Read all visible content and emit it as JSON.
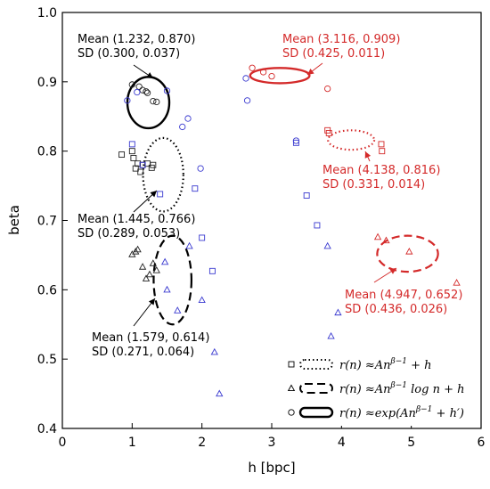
{
  "chart_data": {
    "type": "scatter",
    "title": "",
    "xlabel": "h [bpc]",
    "ylabel": "beta",
    "xlim": [
      0,
      6
    ],
    "ylim": [
      0.4,
      1.0
    ],
    "xticks": [
      0,
      1,
      2,
      3,
      4,
      5,
      6
    ],
    "yticks": [
      0.4,
      0.5,
      0.6,
      0.7,
      0.8,
      0.9,
      1.0
    ],
    "grid": false,
    "legend_position": "bottom-right",
    "legend": [
      {
        "marker": "square",
        "line": "dotted",
        "label": "r(n) ≈ An^(β−1) + h"
      },
      {
        "marker": "triangle",
        "line": "dashed",
        "label": "r(n) ≈ An^(β−1) log n + h"
      },
      {
        "marker": "circle",
        "line": "solid",
        "label": "r(n) ≈ exp(An^(β−1) + h′)"
      }
    ],
    "series": [
      {
        "group": "black",
        "color": "#222222",
        "marker": "circle",
        "points": [
          [
            1.0,
            0.896
          ],
          [
            1.1,
            0.893
          ],
          [
            1.15,
            0.888
          ],
          [
            1.2,
            0.886
          ],
          [
            1.22,
            0.884
          ],
          [
            1.3,
            0.872
          ],
          [
            1.35,
            0.871
          ]
        ]
      },
      {
        "group": "black",
        "color": "#222222",
        "marker": "square",
        "points": [
          [
            0.85,
            0.795
          ],
          [
            1.0,
            0.8
          ],
          [
            1.02,
            0.79
          ],
          [
            1.05,
            0.775
          ],
          [
            1.08,
            0.782
          ],
          [
            1.12,
            0.77
          ],
          [
            1.15,
            0.78
          ],
          [
            1.22,
            0.782
          ],
          [
            1.28,
            0.776
          ],
          [
            1.3,
            0.78
          ]
        ]
      },
      {
        "group": "black",
        "color": "#222222",
        "marker": "triangle",
        "points": [
          [
            1.0,
            0.651
          ],
          [
            1.05,
            0.655
          ],
          [
            1.08,
            0.658
          ],
          [
            1.15,
            0.633
          ],
          [
            1.2,
            0.616
          ],
          [
            1.25,
            0.622
          ],
          [
            1.3,
            0.638
          ],
          [
            1.35,
            0.628
          ]
        ]
      },
      {
        "group": "blue",
        "color": "#3a3ad0",
        "marker": "circle",
        "points": [
          [
            0.93,
            0.873
          ],
          [
            1.07,
            0.885
          ],
          [
            1.5,
            0.887
          ],
          [
            1.72,
            0.835
          ],
          [
            1.8,
            0.847
          ],
          [
            1.98,
            0.775
          ],
          [
            2.63,
            0.905
          ],
          [
            2.65,
            0.873
          ],
          [
            3.35,
            0.815
          ]
        ]
      },
      {
        "group": "blue",
        "color": "#3a3ad0",
        "marker": "square",
        "points": [
          [
            1.0,
            0.81
          ],
          [
            1.15,
            0.78
          ],
          [
            1.4,
            0.738
          ],
          [
            1.9,
            0.746
          ],
          [
            2.0,
            0.675
          ],
          [
            2.15,
            0.627
          ],
          [
            3.35,
            0.812
          ],
          [
            3.5,
            0.736
          ],
          [
            3.65,
            0.693
          ]
        ]
      },
      {
        "group": "blue",
        "color": "#3a3ad0",
        "marker": "triangle",
        "points": [
          [
            1.47,
            0.64
          ],
          [
            1.5,
            0.6
          ],
          [
            1.65,
            0.57
          ],
          [
            1.82,
            0.663
          ],
          [
            2.0,
            0.585
          ],
          [
            2.18,
            0.51
          ],
          [
            2.25,
            0.45
          ],
          [
            3.8,
            0.663
          ],
          [
            3.85,
            0.533
          ],
          [
            3.95,
            0.567
          ]
        ]
      },
      {
        "group": "red",
        "color": "#d42a2a",
        "marker": "circle",
        "points": [
          [
            2.72,
            0.92
          ],
          [
            2.88,
            0.914
          ],
          [
            3.0,
            0.908
          ],
          [
            3.8,
            0.89
          ]
        ]
      },
      {
        "group": "red",
        "color": "#d42a2a",
        "marker": "square",
        "points": [
          [
            3.8,
            0.83
          ],
          [
            3.82,
            0.826
          ],
          [
            4.57,
            0.81
          ],
          [
            4.58,
            0.8
          ]
        ]
      },
      {
        "group": "red",
        "color": "#d42a2a",
        "marker": "triangle",
        "points": [
          [
            4.52,
            0.676
          ],
          [
            4.64,
            0.671
          ],
          [
            4.97,
            0.655
          ],
          [
            5.65,
            0.61
          ]
        ]
      }
    ],
    "ellipses": [
      {
        "color": "#000000",
        "style": "solid",
        "cx": 1.232,
        "cy": 0.87,
        "sx": 0.3,
        "sy": 0.037
      },
      {
        "color": "#000000",
        "style": "dotted",
        "cx": 1.445,
        "cy": 0.766,
        "sx": 0.289,
        "sy": 0.053
      },
      {
        "color": "#000000",
        "style": "dashed",
        "cx": 1.579,
        "cy": 0.614,
        "sx": 0.271,
        "sy": 0.064
      },
      {
        "color": "#d42a2a",
        "style": "solid",
        "cx": 3.116,
        "cy": 0.909,
        "sx": 0.425,
        "sy": 0.011
      },
      {
        "color": "#d42a2a",
        "style": "dotted",
        "cx": 4.138,
        "cy": 0.816,
        "sx": 0.331,
        "sy": 0.014
      },
      {
        "color": "#d42a2a",
        "style": "dashed",
        "cx": 4.947,
        "cy": 0.652,
        "sx": 0.436,
        "sy": 0.026
      }
    ],
    "annotations": [
      {
        "color": "#000000",
        "mean": "Mean (1.232, 0.870)",
        "sd": "SD (0.300, 0.037)"
      },
      {
        "color": "#000000",
        "mean": "Mean (1.445, 0.766)",
        "sd": "SD (0.289, 0.053)"
      },
      {
        "color": "#000000",
        "mean": "Mean (1.579, 0.614)",
        "sd": "SD (0.271, 0.064)"
      },
      {
        "color": "#d42a2a",
        "mean": "Mean (3.116, 0.909)",
        "sd": "SD (0.425, 0.011)"
      },
      {
        "color": "#d42a2a",
        "mean": "Mean (4.138, 0.816)",
        "sd": "SD (0.331, 0.014)"
      },
      {
        "color": "#d42a2a",
        "mean": "Mean (4.947, 0.652)",
        "sd": "SD (0.436, 0.026)"
      }
    ]
  }
}
